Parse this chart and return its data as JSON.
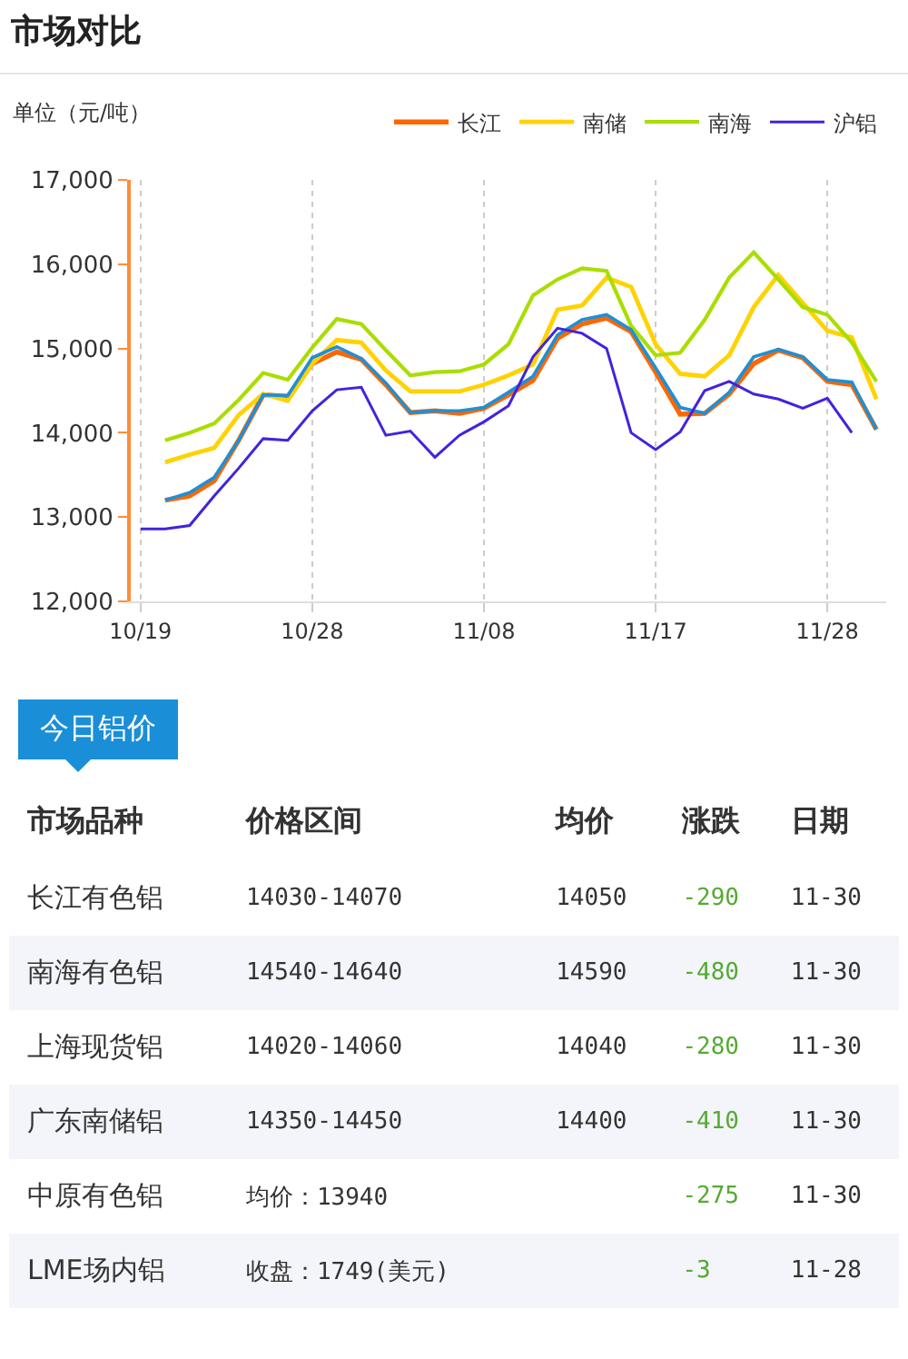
{
  "chart_data": [
    {
      "type": "line",
      "title": "市场对比",
      "ylabel": "单位（元/吨）",
      "categories": [
        "10/19",
        null,
        null,
        null,
        null,
        null,
        null,
        "10/28",
        null,
        null,
        null,
        null,
        null,
        null,
        "11/08",
        null,
        null,
        null,
        null,
        null,
        null,
        "11/17",
        null,
        null,
        null,
        null,
        null,
        null,
        "11/28",
        null,
        null
      ],
      "series": [
        {
          "name": "长江",
          "color": "#ff6600",
          "values": [
            null,
            13200,
            13250,
            13430,
            13910,
            14450,
            14430,
            14820,
            14960,
            14870,
            14570,
            14240,
            14260,
            14230,
            14290,
            14450,
            14620,
            15120,
            15290,
            15360,
            15200,
            14720,
            14220,
            14230,
            14460,
            14820,
            14980,
            14890,
            14610,
            14570,
            14040
          ]
        },
        {
          "name": "南储",
          "color": "#ffd200",
          "values": [
            null,
            13650,
            13740,
            13820,
            14210,
            14460,
            14380,
            14820,
            15100,
            15070,
            14740,
            14490,
            14490,
            14490,
            14570,
            14680,
            14810,
            15460,
            15510,
            15840,
            15730,
            15050,
            14700,
            14670,
            14920,
            15490,
            15870,
            15540,
            15210,
            15130,
            14400
          ]
        },
        {
          "name": "南海",
          "color": "#aadd00",
          "values": [
            null,
            13910,
            14000,
            14110,
            14390,
            14710,
            14630,
            15010,
            15350,
            15290,
            14980,
            14680,
            14720,
            14730,
            14810,
            15050,
            15630,
            15820,
            15950,
            15920,
            15270,
            14920,
            14950,
            15340,
            15840,
            16140,
            15820,
            15490,
            15400,
            15070,
            14610
          ]
        },
        {
          "color": "#1e90d6",
          "values": [
            null,
            13200,
            13290,
            13470,
            13910,
            14450,
            14440,
            14890,
            15020,
            14880,
            14590,
            14240,
            14260,
            14260,
            14300,
            14480,
            14670,
            15160,
            15340,
            15400,
            15220,
            14770,
            14300,
            14230,
            14480,
            14900,
            14990,
            14900,
            14630,
            14600,
            14040
          ]
        },
        {
          "name": "沪铝",
          "color": "#4422dd",
          "values": [
            12860,
            12860,
            12900,
            13250,
            13580,
            13930,
            13910,
            14260,
            14510,
            14540,
            13970,
            14020,
            13710,
            13970,
            14130,
            14320,
            14900,
            15240,
            15180,
            15000,
            14000,
            13800,
            14010,
            14500,
            14610,
            14460,
            14400,
            14290,
            14410,
            14000,
            null
          ]
        }
      ],
      "ylim": [
        12000,
        17000
      ],
      "yticks": [
        {
          "value": 12000,
          "label": "12,000"
        },
        {
          "value": 13000,
          "label": "13,000"
        },
        {
          "value": 14000,
          "label": "14,000"
        },
        {
          "value": 15000,
          "label": "15,000"
        },
        {
          "value": 16000,
          "label": "16,000"
        },
        {
          "value": 17000,
          "label": "17,000"
        }
      ],
      "grid": "x",
      "legend": "top right",
      "marker": "none",
      "line_style": "solid"
    },
    {
      "type": "other",
      "title": "今日铝价",
      "categories": [
        "市场品种",
        "价格区间",
        "均价",
        "涨跌",
        "日期"
      ],
      "annotations": [
        "长江有色铝",
        "14030-14070",
        "14050",
        "-290",
        "11-30",
        "南海有色铝",
        "14540-14640",
        "14590",
        "-480",
        "11-30",
        "上海现货铝",
        "14020-14060",
        "14040",
        "-280",
        "11-30",
        "广东南储铝",
        "14350-14450",
        "14400",
        "-410",
        "11-30",
        "中原有色铝",
        "均价：13940",
        null,
        "-275",
        "11-30",
        "LME场内铝",
        "收盘：1749(美元)",
        null,
        "-3",
        "11-28"
      ]
    }
  ]
}
